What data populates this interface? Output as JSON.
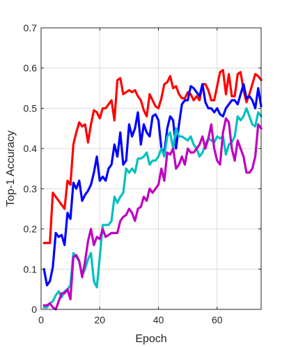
{
  "chart_data": {
    "type": "line",
    "title": "",
    "xlabel": "Epoch",
    "ylabel": "Top-1 Accuracy",
    "xlim": [
      0,
      75
    ],
    "ylim": [
      0,
      0.7
    ],
    "xticks": [
      0,
      20,
      40,
      60
    ],
    "xtick_labels": [
      "0",
      "20",
      "40",
      "60"
    ],
    "yticks": [
      0,
      0.1,
      0.2,
      0.3,
      0.4,
      0.5,
      0.6,
      0.7
    ],
    "ytick_labels": [
      "0",
      "0.1",
      "0.2",
      "0.3",
      "0.4",
      "0.5",
      "0.6",
      "0.7"
    ],
    "grid": true,
    "legend": "none",
    "x": [
      1,
      2,
      3,
      4,
      5,
      6,
      7,
      8,
      9,
      10,
      11,
      12,
      13,
      14,
      15,
      16,
      17,
      18,
      19,
      20,
      21,
      22,
      23,
      24,
      25,
      26,
      27,
      28,
      29,
      30,
      31,
      32,
      33,
      34,
      35,
      36,
      37,
      38,
      39,
      40,
      41,
      42,
      43,
      44,
      45,
      46,
      47,
      48,
      49,
      50,
      51,
      52,
      53,
      54,
      55,
      56,
      57,
      58,
      59,
      60,
      61,
      62,
      63,
      64,
      65,
      66,
      67,
      68,
      69,
      70,
      71,
      72,
      73,
      74,
      75
    ],
    "series": [
      {
        "color": "#ff0000",
        "values": [
          0.165,
          0.165,
          0.165,
          0.29,
          0.28,
          0.27,
          0.26,
          0.25,
          0.32,
          0.31,
          0.41,
          0.44,
          0.465,
          0.455,
          0.46,
          0.415,
          0.46,
          0.495,
          0.49,
          0.475,
          0.5,
          0.5,
          0.51,
          0.52,
          0.47,
          0.57,
          0.575,
          0.535,
          0.54,
          0.545,
          0.54,
          0.545,
          0.53,
          0.52,
          0.495,
          0.48,
          0.535,
          0.52,
          0.505,
          0.5,
          0.525,
          0.56,
          0.565,
          0.58,
          0.55,
          0.555,
          0.535,
          0.525,
          0.525,
          0.54,
          0.535,
          0.52,
          0.53,
          0.52,
          0.56,
          0.56,
          0.545,
          0.52,
          0.52,
          0.555,
          0.59,
          0.595,
          0.535,
          0.585,
          0.53,
          0.53,
          0.585,
          0.59,
          0.545,
          0.515,
          0.535,
          0.56,
          0.585,
          0.58,
          0.57
        ]
      },
      {
        "color": "#0000ff",
        "values": [
          0.1,
          0.06,
          0.07,
          0.105,
          0.19,
          0.18,
          0.185,
          0.16,
          0.24,
          0.225,
          0.315,
          0.3,
          0.32,
          0.27,
          0.285,
          0.295,
          0.31,
          0.34,
          0.38,
          0.32,
          0.33,
          0.32,
          0.35,
          0.36,
          0.41,
          0.38,
          0.44,
          0.36,
          0.37,
          0.46,
          0.43,
          0.45,
          0.49,
          0.41,
          0.46,
          0.44,
          0.43,
          0.48,
          0.485,
          0.47,
          0.4,
          0.39,
          0.45,
          0.48,
          0.47,
          0.4,
          0.46,
          0.51,
          0.52,
          0.52,
          0.555,
          0.55,
          0.54,
          0.53,
          0.56,
          0.515,
          0.5,
          0.5,
          0.49,
          0.5,
          0.485,
          0.48,
          0.5,
          0.51,
          0.52,
          0.52,
          0.51,
          0.535,
          0.56,
          0.525,
          0.53,
          0.52,
          0.5,
          0.55,
          0.505
        ]
      },
      {
        "color": "#00c0c0",
        "values": [
          0.005,
          0.005,
          0.015,
          0.02,
          0.035,
          0.045,
          0.03,
          0.045,
          0.05,
          0.06,
          0.14,
          0.13,
          0.12,
          0.085,
          0.1,
          0.125,
          0.14,
          0.07,
          0.055,
          0.13,
          0.21,
          0.21,
          0.21,
          0.22,
          0.28,
          0.265,
          0.28,
          0.29,
          0.35,
          0.34,
          0.35,
          0.34,
          0.375,
          0.375,
          0.38,
          0.39,
          0.36,
          0.37,
          0.37,
          0.38,
          0.4,
          0.38,
          0.43,
          0.44,
          0.4,
          0.45,
          0.43,
          0.43,
          0.425,
          0.42,
          0.43,
          0.41,
          0.4,
          0.38,
          0.39,
          0.41,
          0.425,
          0.42,
          0.415,
          0.43,
          0.425,
          0.43,
          0.385,
          0.41,
          0.415,
          0.43,
          0.48,
          0.47,
          0.48,
          0.5,
          0.48,
          0.46,
          0.455,
          0.49,
          0.48
        ]
      },
      {
        "color": "#c000c0",
        "values": [
          0.01,
          0.01,
          0.015,
          0.005,
          0.0,
          0.02,
          0.04,
          0.04,
          0.05,
          0.025,
          0.13,
          0.135,
          0.12,
          0.08,
          0.12,
          0.17,
          0.2,
          0.16,
          0.18,
          0.175,
          0.2,
          0.18,
          0.185,
          0.19,
          0.19,
          0.19,
          0.22,
          0.23,
          0.235,
          0.25,
          0.24,
          0.22,
          0.25,
          0.255,
          0.28,
          0.27,
          0.3,
          0.29,
          0.3,
          0.31,
          0.35,
          0.32,
          0.39,
          0.385,
          0.4,
          0.35,
          0.36,
          0.38,
          0.36,
          0.4,
          0.39,
          0.39,
          0.4,
          0.41,
          0.43,
          0.4,
          0.425,
          0.46,
          0.4,
          0.37,
          0.36,
          0.44,
          0.475,
          0.465,
          0.4,
          0.37,
          0.42,
          0.4,
          0.38,
          0.34,
          0.34,
          0.35,
          0.38,
          0.46,
          0.45
        ]
      }
    ]
  }
}
